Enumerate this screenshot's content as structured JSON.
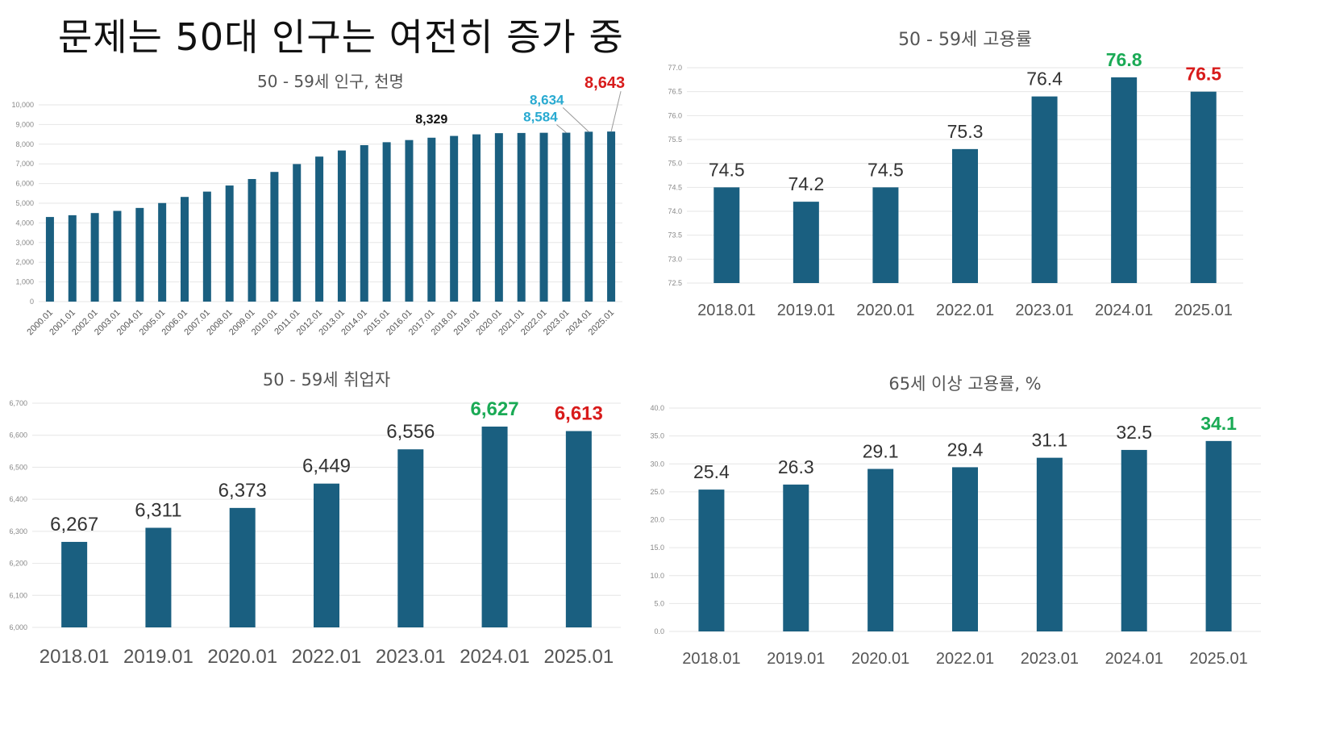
{
  "headline": "문제는 50대 인구는 여전히 증가 중",
  "colors": {
    "bar": "#1a5f80",
    "grid": "#e6e6e6",
    "green": "#1aaa55",
    "red": "#d81b1b",
    "cyan": "#29aad1",
    "black": "#111111",
    "dark": "#333333"
  },
  "chart_data": [
    {
      "type": "bar",
      "title": "50 - 59세 인구, 천명",
      "categories": [
        "2000.01",
        "2001.01",
        "2002.01",
        "2003.01",
        "2004.01",
        "2005.01",
        "2006.01",
        "2007.01",
        "2008.01",
        "2009.01",
        "2010.01",
        "2011.01",
        "2012.01",
        "2013.01",
        "2014.01",
        "2015.01",
        "2016.01",
        "2017.01",
        "2018.01",
        "2019.01",
        "2020.01",
        "2021.01",
        "2022.01",
        "2023.01",
        "2024.01",
        "2025.01"
      ],
      "values": [
        4300,
        4390,
        4500,
        4610,
        4760,
        5010,
        5320,
        5590,
        5900,
        6230,
        6590,
        6990,
        7370,
        7680,
        7950,
        8100,
        8210,
        8329,
        8420,
        8500,
        8560,
        8570,
        8580,
        8584,
        8634,
        8643
      ],
      "ylim": [
        0,
        10000
      ],
      "yticks": [
        "0",
        "1,000",
        "2,000",
        "3,000",
        "4,000",
        "5,000",
        "6,000",
        "7,000",
        "8,000",
        "9,000",
        "10,000"
      ],
      "grid": true,
      "annotations": [
        {
          "index": 17,
          "label": "8,329",
          "color": "black"
        },
        {
          "index": 23,
          "label": "8,584",
          "color": "cyan"
        },
        {
          "index": 24,
          "label": "8,634",
          "color": "cyan"
        },
        {
          "index": 25,
          "label": "8,643",
          "color": "red"
        }
      ]
    },
    {
      "type": "bar",
      "title": "50 - 59세 고용률",
      "categories": [
        "2018.01",
        "2019.01",
        "2020.01",
        "2022.01",
        "2023.01",
        "2024.01",
        "2025.01"
      ],
      "values": [
        74.5,
        74.2,
        74.5,
        75.3,
        76.4,
        76.8,
        76.5
      ],
      "labels": [
        "74.5",
        "74.2",
        "74.5",
        "75.3",
        "76.4",
        "76.8",
        "76.5"
      ],
      "label_colors": [
        "dark",
        "dark",
        "dark",
        "dark",
        "dark",
        "green",
        "red"
      ],
      "ylim": [
        72.5,
        77.0
      ],
      "yticks": [
        "72.5",
        "73.0",
        "73.5",
        "74.0",
        "74.5",
        "75.0",
        "75.5",
        "76.0",
        "76.5",
        "77.0"
      ],
      "grid": true
    },
    {
      "type": "bar",
      "title": "50 - 59세 취업자",
      "categories": [
        "2018.01",
        "2019.01",
        "2020.01",
        "2022.01",
        "2023.01",
        "2024.01",
        "2025.01"
      ],
      "values": [
        6267,
        6311,
        6373,
        6449,
        6556,
        6627,
        6613
      ],
      "labels": [
        "6,267",
        "6,311",
        "6,373",
        "6,449",
        "6,556",
        "6,627",
        "6,613"
      ],
      "label_colors": [
        "dark",
        "dark",
        "dark",
        "dark",
        "dark",
        "green",
        "red"
      ],
      "ylim": [
        6000,
        6700
      ],
      "yticks": [
        "6,000",
        "6,100",
        "6,200",
        "6,300",
        "6,400",
        "6,500",
        "6,600",
        "6,700"
      ],
      "grid": true
    },
    {
      "type": "bar",
      "title": "65세 이상 고용률, %",
      "categories": [
        "2018.01",
        "2019.01",
        "2020.01",
        "2022.01",
        "2023.01",
        "2024.01",
        "2025.01"
      ],
      "values": [
        25.4,
        26.3,
        29.1,
        29.4,
        31.1,
        32.5,
        34.1
      ],
      "labels": [
        "25.4",
        "26.3",
        "29.1",
        "29.4",
        "31.1",
        "32.5",
        "34.1"
      ],
      "label_colors": [
        "dark",
        "dark",
        "dark",
        "dark",
        "dark",
        "dark",
        "green"
      ],
      "ylim": [
        0,
        40
      ],
      "yticks": [
        "0.0",
        "5.0",
        "10.0",
        "15.0",
        "20.0",
        "25.0",
        "30.0",
        "35.0",
        "40.0"
      ],
      "grid": true
    }
  ]
}
